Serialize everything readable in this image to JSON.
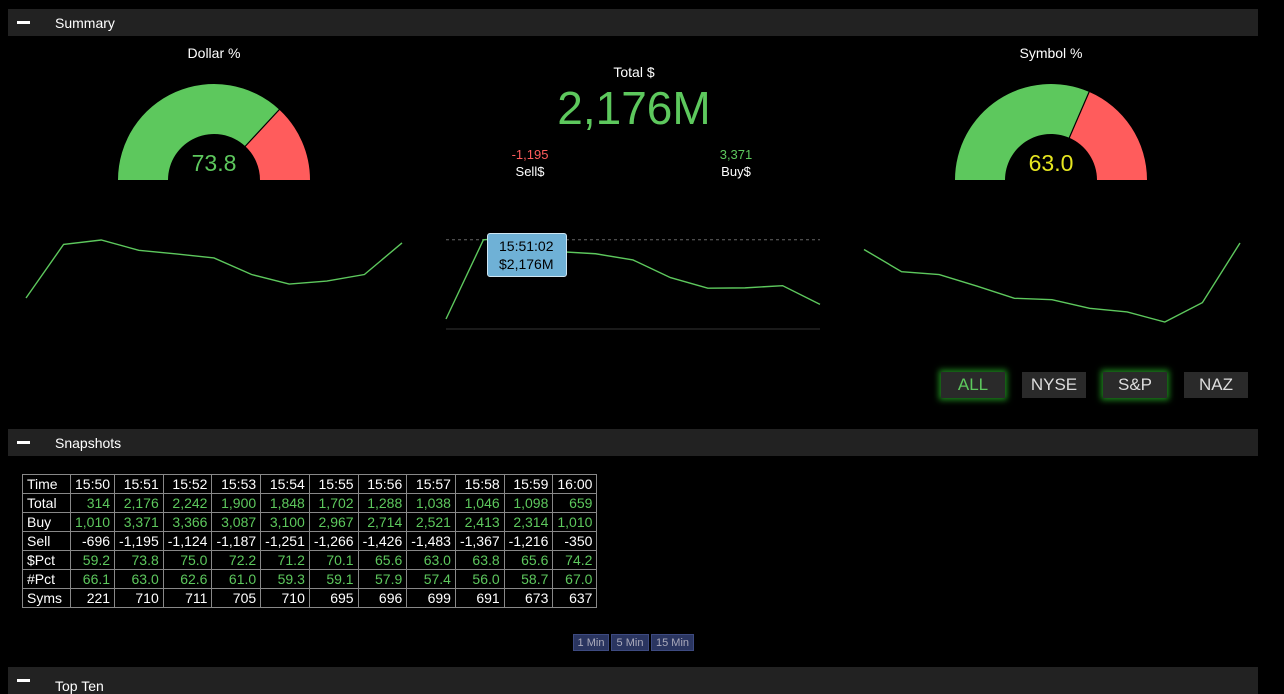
{
  "summary": {
    "title": "Summary",
    "dollar_gauge": {
      "title": "Dollar %",
      "value": "73.8",
      "value_color": "#5dc85d",
      "fraction": 0.738
    },
    "symbol_gauge": {
      "title": "Symbol %",
      "value": "63.0",
      "value_color": "#e6e620",
      "fraction": 0.63
    },
    "total_label": "Total $",
    "total_value": "2,176M",
    "sell_value": "-1,195",
    "sell_label": "Sell$",
    "buy_value": "3,371",
    "buy_label": "Buy$",
    "tooltip_time": "15:51:02",
    "tooltip_value": "$2,176M",
    "filters": [
      {
        "label": "ALL",
        "active": true,
        "glow": true
      },
      {
        "label": "NYSE",
        "active": false,
        "glow": false
      },
      {
        "label": "S&P",
        "active": false,
        "glow": true
      },
      {
        "label": "NAZ",
        "active": false,
        "glow": false
      }
    ]
  },
  "colors": {
    "green": "#5dc85d",
    "red": "#ff5c5c",
    "yellow": "#e6e620"
  },
  "sparklines": {
    "dollar_pct": [
      59.2,
      73.8,
      75.0,
      72.2,
      71.2,
      70.1,
      65.6,
      63.0,
      63.8,
      65.6,
      74.2
    ],
    "total": [
      314,
      2176,
      2242,
      1900,
      1848,
      1702,
      1288,
      1038,
      1046,
      1098,
      659
    ],
    "symbol_pct": [
      66.1,
      63.0,
      62.6,
      61.0,
      59.3,
      59.1,
      57.9,
      57.4,
      56.0,
      58.7,
      67.0
    ]
  },
  "snapshots": {
    "title": "Snapshots",
    "header": [
      "Time",
      "15:50",
      "15:51",
      "15:52",
      "15:53",
      "15:54",
      "15:55",
      "15:56",
      "15:57",
      "15:58",
      "15:59",
      "16:00"
    ],
    "rows": [
      {
        "label": "Total",
        "color": "green",
        "values": [
          "314",
          "2,176",
          "2,242",
          "1,900",
          "1,848",
          "1,702",
          "1,288",
          "1,038",
          "1,046",
          "1,098",
          "659"
        ]
      },
      {
        "label": "Buy",
        "color": "green",
        "values": [
          "1,010",
          "3,371",
          "3,366",
          "3,087",
          "3,100",
          "2,967",
          "2,714",
          "2,521",
          "2,413",
          "2,314",
          "1,010"
        ]
      },
      {
        "label": "Sell",
        "color": "white",
        "values": [
          "-696",
          "-1,195",
          "-1,124",
          "-1,187",
          "-1,251",
          "-1,266",
          "-1,426",
          "-1,483",
          "-1,367",
          "-1,216",
          "-350"
        ]
      },
      {
        "label": "$Pct",
        "color": "green",
        "values": [
          "59.2",
          "73.8",
          "75.0",
          "72.2",
          "71.2",
          "70.1",
          "65.6",
          "63.0",
          "63.8",
          "65.6",
          "74.2"
        ]
      },
      {
        "label": "#Pct",
        "color": "green",
        "values": [
          "66.1",
          "63.0",
          "62.6",
          "61.0",
          "59.3",
          "59.1",
          "57.9",
          "57.4",
          "56.0",
          "58.7",
          "67.0"
        ]
      },
      {
        "label": "Syms",
        "color": "white",
        "values": [
          "221",
          "710",
          "711",
          "705",
          "710",
          "695",
          "696",
          "699",
          "691",
          "673",
          "637"
        ]
      }
    ],
    "intervals": [
      "1 Min",
      "5 Min",
      "15 Min"
    ]
  },
  "next_section": {
    "title": "Top Ten"
  }
}
